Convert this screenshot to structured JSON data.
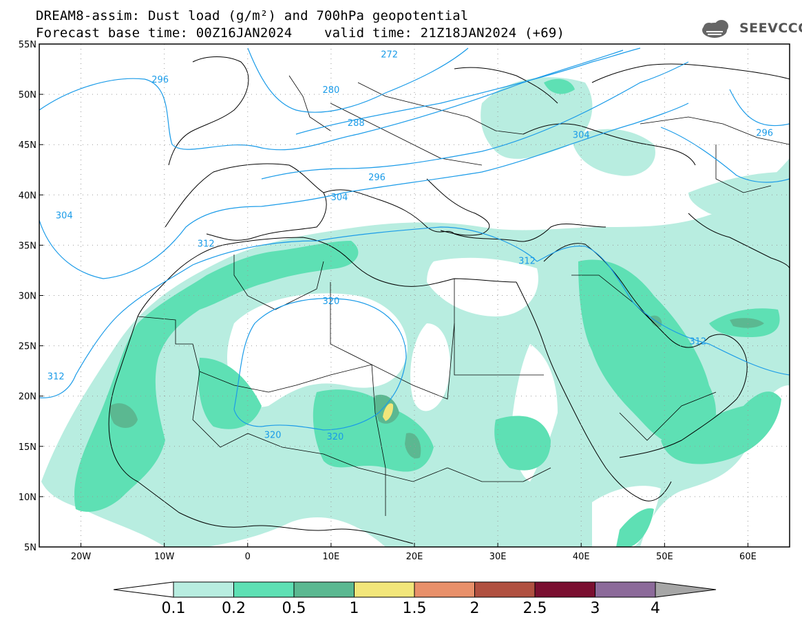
{
  "title": {
    "line1": "DREAM8-assim: Dust load (g/m²) and 700hPa geopotential",
    "line2_left": "Forecast base time: 00Z16JAN2024",
    "line2_right": "valid time: 21Z18JAN2024 (+69)"
  },
  "logo": {
    "text": "SEEVCCC",
    "icon": "cloud-logo-icon"
  },
  "map": {
    "lat_range": [
      5,
      55
    ],
    "lon_range": [
      -25,
      65
    ],
    "lat_ticks": [
      "55N",
      "50N",
      "45N",
      "40N",
      "35N",
      "30N",
      "25N",
      "20N",
      "15N",
      "10N",
      "5N"
    ],
    "lat_values": [
      55,
      50,
      45,
      40,
      35,
      30,
      25,
      20,
      15,
      10,
      5
    ],
    "lon_ticks": [
      "20W",
      "10W",
      "0",
      "10E",
      "20E",
      "30E",
      "40E",
      "50E",
      "60E"
    ],
    "lon_values": [
      -20,
      -10,
      0,
      10,
      20,
      30,
      40,
      50,
      60
    ],
    "contour_labels": [
      {
        "text": "272",
        "lon": 17,
        "lat": 54
      },
      {
        "text": "296",
        "lon": -10.5,
        "lat": 51.5
      },
      {
        "text": "280",
        "lon": 10,
        "lat": 50.5
      },
      {
        "text": "288",
        "lon": 13,
        "lat": 47.2
      },
      {
        "text": "296",
        "lon": 15.5,
        "lat": 41.8
      },
      {
        "text": "304",
        "lon": -22,
        "lat": 38
      },
      {
        "text": "304",
        "lon": 11,
        "lat": 39.8
      },
      {
        "text": "304",
        "lon": 40,
        "lat": 46
      },
      {
        "text": "296",
        "lon": 62,
        "lat": 46.2
      },
      {
        "text": "312",
        "lon": -5,
        "lat": 35.2
      },
      {
        "text": "312",
        "lon": 33.5,
        "lat": 33.5
      },
      {
        "text": "312",
        "lon": -23,
        "lat": 22
      },
      {
        "text": "312",
        "lon": 54,
        "lat": 25.5
      },
      {
        "text": "320",
        "lon": 10,
        "lat": 29.5
      },
      {
        "text": "320",
        "lon": 3,
        "lat": 16.2
      },
      {
        "text": "320",
        "lon": 10.5,
        "lat": 16
      }
    ]
  },
  "colorbar": {
    "labels": [
      "0.1",
      "0.2",
      "0.5",
      "1",
      "1.5",
      "2",
      "2.5",
      "3",
      "4"
    ],
    "colors": [
      "#b8ede0",
      "#5ee0b4",
      "#5bb891",
      "#f2e67a",
      "#e8906a",
      "#b05040",
      "#7a0f30",
      "#8c6a9a"
    ],
    "under_color": "#ffffff",
    "over_color": "#a6a6a6"
  },
  "colors": {
    "contour": "#1a9be8",
    "frame": "#000000"
  }
}
